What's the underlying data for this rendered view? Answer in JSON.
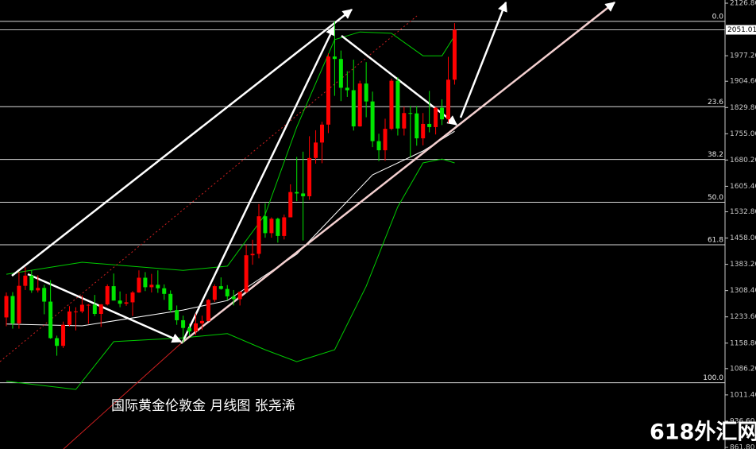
{
  "chart_data": {
    "type": "candlestick",
    "caption": "国际黄金伦敦金  月线图  张尧浠",
    "watermark": "618外汇网",
    "ylim": [
      857.3,
      2135.9
    ],
    "yticks": [
      {
        "value": 2126.8,
        "label": "2126.80"
      },
      {
        "value": 1977.2,
        "label": "1977.20"
      },
      {
        "value": 1904.6,
        "label": "1904.60"
      },
      {
        "value": 1829.8,
        "label": "1829.80"
      },
      {
        "value": 1755,
        "label": "1755.00"
      },
      {
        "value": 1680.2,
        "label": "1680.20"
      },
      {
        "value": 1605.4,
        "label": "1605.40"
      },
      {
        "value": 1532.8,
        "label": "1532.80"
      },
      {
        "value": 1458,
        "label": "1458.00"
      },
      {
        "value": 1383.2,
        "label": "1383.20"
      },
      {
        "value": 1308.4,
        "label": "1308.40"
      },
      {
        "value": 1233.6,
        "label": "1233.60"
      },
      {
        "value": 1158.8,
        "label": "1158.80"
      },
      {
        "value": 1086.2,
        "label": "1086.20"
      },
      {
        "value": 1011.4,
        "label": "1011.40"
      },
      {
        "value": 936.6,
        "label": "936.60"
      },
      {
        "value": 861.8,
        "label": "861.80"
      }
    ],
    "last_price": 2051.01,
    "fib_levels": [
      {
        "label": "0.0",
        "price": 2075
      },
      {
        "label": "23.6",
        "price": 1832
      },
      {
        "label": "38.2",
        "price": 1682
      },
      {
        "label": "50.0",
        "price": 1560
      },
      {
        "label": "61.8",
        "price": 1439
      },
      {
        "label": "100.0",
        "price": 1046
      }
    ],
    "up_color": "#ff0000",
    "down_color": "#00e600",
    "open": [
      1232,
      1293,
      1215,
      1322,
      1351,
      1309,
      1316,
      1277,
      1173,
      1151,
      1211,
      1249,
      1249,
      1268,
      1268,
      1242,
      1269,
      1321,
      1280,
      1271,
      1275,
      1303,
      1345,
      1318,
      1325,
      1315,
      1299,
      1253,
      1224,
      1202,
      1192,
      1215,
      1222,
      1282,
      1321,
      1313,
      1292,
      1284,
      1305,
      1409,
      1413,
      1520,
      1472,
      1513,
      1464,
      1517,
      1589,
      1585,
      1577,
      1686,
      1730,
      1781,
      1975,
      1968,
      1886,
      1879,
      1776,
      1898,
      1847,
      1734,
      1708,
      1769,
      1906,
      1770,
      1814,
      1813,
      1742,
      1783,
      1774,
      1829,
      1796,
      1909
    ],
    "high": [
      1303,
      1304,
      1362,
      1375,
      1366,
      1352,
      1325,
      1338,
      1180,
      1220,
      1264,
      1261,
      1295,
      1270,
      1296,
      1270,
      1326,
      1357,
      1306,
      1299,
      1307,
      1366,
      1361,
      1356,
      1366,
      1326,
      1309,
      1266,
      1237,
      1214,
      1243,
      1237,
      1284,
      1326,
      1346,
      1324,
      1310,
      1306,
      1439,
      1453,
      1555,
      1557,
      1517,
      1516,
      1525,
      1611,
      1689,
      1704,
      1748,
      1765,
      1789,
      1984,
      2075,
      1992,
      1933,
      1966,
      1906,
      1959,
      1875,
      1755,
      1798,
      1912,
      1916,
      1832,
      1834,
      1834,
      1814,
      1877,
      1831,
      1853,
      1974,
      2070
    ],
    "low": [
      1207,
      1200,
      1200,
      1310,
      1302,
      1303,
      1241,
      1171,
      1123,
      1145,
      1206,
      1195,
      1244,
      1214,
      1236,
      1205,
      1266,
      1280,
      1261,
      1265,
      1236,
      1302,
      1307,
      1303,
      1302,
      1282,
      1246,
      1211,
      1160,
      1180,
      1182,
      1196,
      1221,
      1276,
      1311,
      1281,
      1266,
      1266,
      1301,
      1382,
      1400,
      1459,
      1459,
      1445,
      1454,
      1517,
      1563,
      1451,
      1567,
      1670,
      1671,
      1757,
      1863,
      1848,
      1860,
      1764,
      1775,
      1802,
      1717,
      1677,
      1678,
      1765,
      1750,
      1750,
      1688,
      1721,
      1722,
      1759,
      1753,
      1780,
      1786,
      1895
    ],
    "close": [
      1293,
      1215,
      1322,
      1351,
      1309,
      1316,
      1277,
      1173,
      1151,
      1211,
      1249,
      1249,
      1268,
      1268,
      1242,
      1269,
      1321,
      1280,
      1271,
      1275,
      1303,
      1345,
      1318,
      1325,
      1315,
      1299,
      1253,
      1224,
      1202,
      1192,
      1215,
      1222,
      1282,
      1321,
      1313,
      1292,
      1284,
      1305,
      1409,
      1413,
      1520,
      1472,
      1513,
      1464,
      1517,
      1589,
      1585,
      1577,
      1686,
      1730,
      1781,
      1975,
      1968,
      1886,
      1879,
      1776,
      1898,
      1847,
      1734,
      1708,
      1769,
      1906,
      1770,
      1814,
      1813,
      1742,
      1783,
      1774,
      1829,
      1796,
      1909,
      2051.01
    ],
    "indicators": [
      {
        "color": "#00cc00",
        "x": [
          0,
          12,
          28,
          35,
          41,
          46,
          52,
          56,
          61,
          66,
          69,
          71
        ],
        "values": [
          1355,
          1389,
          1366,
          1378,
          1525,
          1774,
          2023,
          2045,
          2041,
          1977,
          1977,
          2034
        ]
      },
      {
        "color": "#00cc00",
        "x": [
          0,
          11,
          17,
          28,
          35,
          41,
          46,
          52,
          57,
          62,
          66,
          69,
          71
        ],
        "values": [
          1050,
          1027,
          1163,
          1174,
          1186,
          1140,
          1106,
          1140,
          1321,
          1547,
          1672,
          1683,
          1672
        ]
      },
      {
        "color": "#ffffff",
        "x": [
          0,
          12,
          28,
          35,
          46,
          52,
          58,
          66,
          71
        ],
        "values": [
          1213,
          1208,
          1253,
          1280,
          1412,
          1525,
          1638,
          1706,
          1762
        ]
      }
    ]
  }
}
